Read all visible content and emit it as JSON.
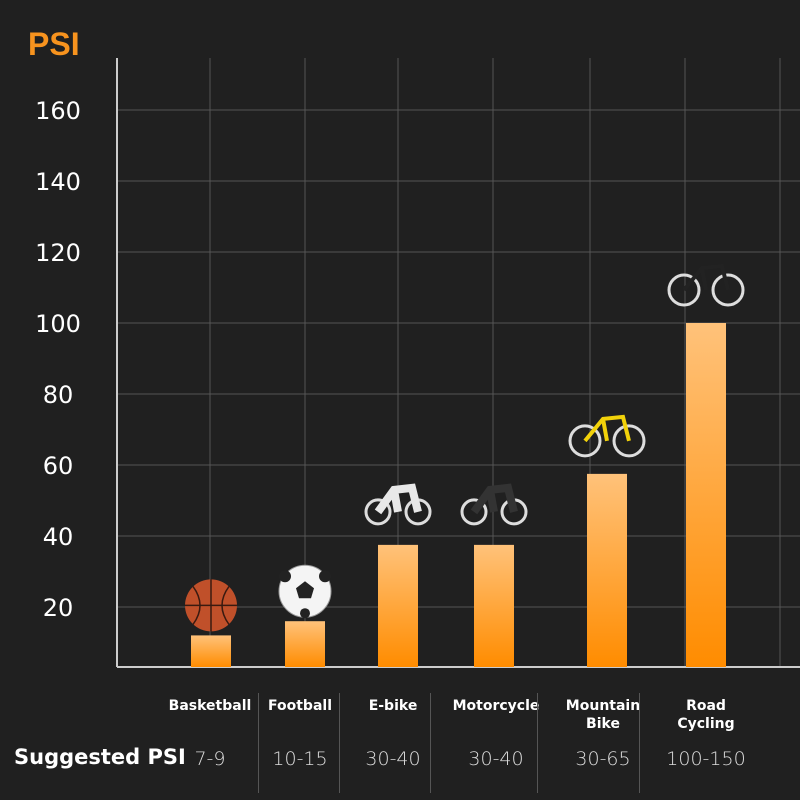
{
  "chart_data": {
    "type": "bar",
    "ylabel": "PSI",
    "ylim": [
      3,
      168
    ],
    "yticks": [
      20,
      40,
      60,
      80,
      100,
      120,
      140,
      160
    ],
    "grid": true,
    "categories": [
      "Basketball",
      "Football",
      "E-bike",
      "Motorcycle",
      "Mountain Bike",
      "Road Cycling"
    ],
    "values": [
      12,
      16,
      37.5,
      37.5,
      57.5,
      100
    ],
    "suggested_label": "Suggested PSI",
    "suggested_ranges": [
      "7-9",
      "10-15",
      "30-40",
      "30-40",
      "30-65",
      "100-150"
    ],
    "icons": [
      "basketball-icon",
      "football-icon",
      "scooter-icon",
      "motorcycle-icon",
      "mountain-bike-icon",
      "road-bike-icon"
    ],
    "colors": {
      "bar_top": "#ffc27a",
      "bar_bottom": "#ff8c00",
      "title": "#f7931e",
      "background": "#202020"
    }
  }
}
